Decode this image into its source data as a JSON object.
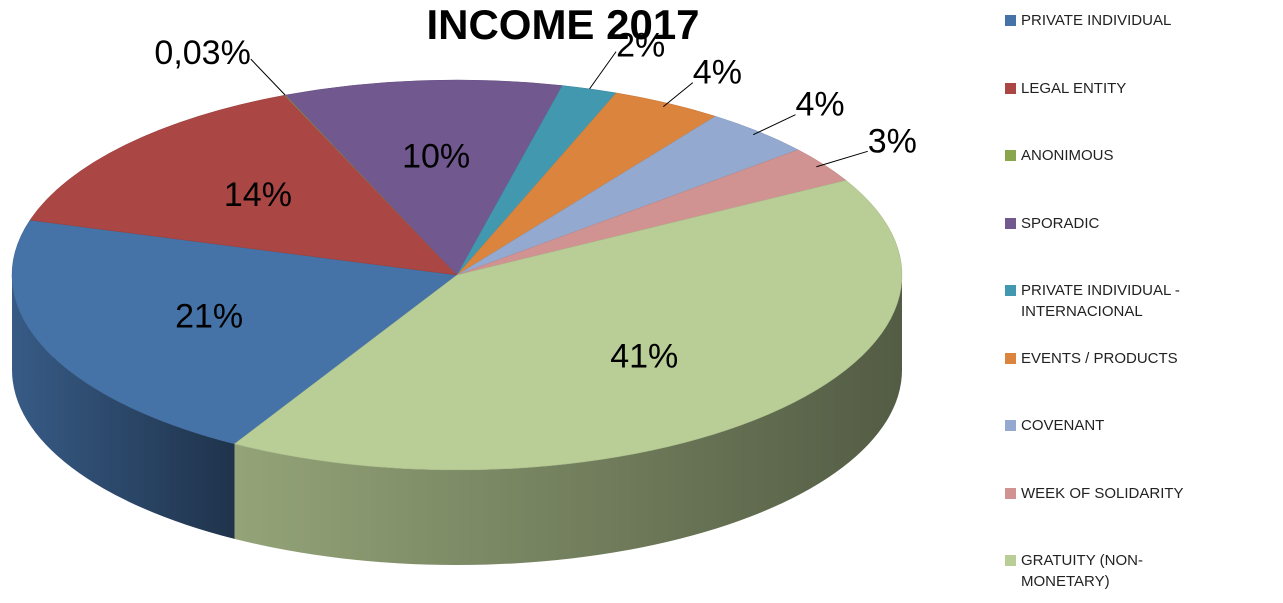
{
  "chart_data": {
    "type": "pie",
    "title": "INCOME 2017",
    "categories": [
      "PRIVATE INDIVIDUAL",
      "LEGAL ENTITY",
      "ANONIMOUS",
      "SPORADIC",
      "PRIVATE INDIVIDUAL - INTERNACIONAL",
      "EVENTS / PRODUCTS",
      "COVENANT",
      "WEEK OF SOLIDARITY",
      "GRATUITY (NON-MONETARY)"
    ],
    "values": [
      21,
      14,
      0.03,
      10,
      2,
      4,
      4,
      3,
      41
    ],
    "value_labels": [
      "21%",
      "14%",
      "0,03%",
      "10%",
      "2%",
      "4%",
      "4%",
      "3%",
      "41%"
    ],
    "colors": [
      "#4572a7",
      "#aa4643",
      "#89a54e",
      "#71588f",
      "#4198af",
      "#db843d",
      "#93a9cf",
      "#d19392",
      "#b9cd96"
    ],
    "legend": "right"
  }
}
